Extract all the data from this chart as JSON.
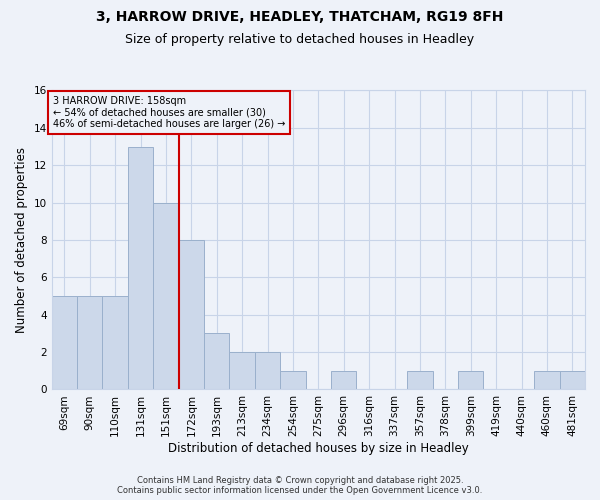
{
  "title_line1": "3, HARROW DRIVE, HEADLEY, THATCHAM, RG19 8FH",
  "title_line2": "Size of property relative to detached houses in Headley",
  "xlabel": "Distribution of detached houses by size in Headley",
  "ylabel": "Number of detached properties",
  "categories": [
    "69sqm",
    "90sqm",
    "110sqm",
    "131sqm",
    "151sqm",
    "172sqm",
    "193sqm",
    "213sqm",
    "234sqm",
    "254sqm",
    "275sqm",
    "296sqm",
    "316sqm",
    "337sqm",
    "357sqm",
    "378sqm",
    "399sqm",
    "419sqm",
    "440sqm",
    "460sqm",
    "481sqm"
  ],
  "values": [
    5,
    5,
    5,
    13,
    10,
    8,
    3,
    2,
    2,
    1,
    0,
    1,
    0,
    0,
    1,
    0,
    1,
    0,
    0,
    1,
    1
  ],
  "bar_color": "#ccd8ea",
  "bar_edge_color": "#9ab0cc",
  "vline_x": 4.5,
  "vline_color": "#cc0000",
  "annotation_text": "3 HARROW DRIVE: 158sqm\n← 54% of detached houses are smaller (30)\n46% of semi-detached houses are larger (26) →",
  "ylim": [
    0,
    16
  ],
  "yticks": [
    0,
    2,
    4,
    6,
    8,
    10,
    12,
    14,
    16
  ],
  "footer_line1": "Contains HM Land Registry data © Crown copyright and database right 2025.",
  "footer_line2": "Contains public sector information licensed under the Open Government Licence v3.0.",
  "background_color": "#eef2f9",
  "grid_color": "#c8d4e8",
  "title_fontsize": 10,
  "subtitle_fontsize": 9,
  "ylabel_fontsize": 8.5,
  "xlabel_fontsize": 8.5,
  "tick_fontsize": 7.5,
  "annot_fontsize": 7,
  "footer_fontsize": 6
}
